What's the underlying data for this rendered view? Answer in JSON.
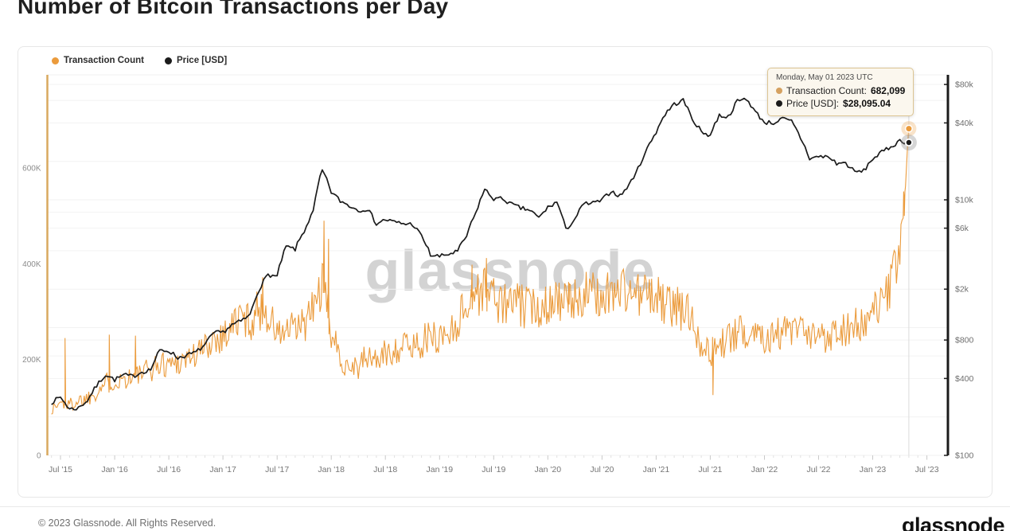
{
  "header": {
    "title": "Number of Bitcoin Transactions per Day"
  },
  "legend": {
    "items": [
      {
        "label": "Transaction Count",
        "color": "#EB9B3C"
      },
      {
        "label": "Price [USD]",
        "color": "#1b1b1b"
      }
    ]
  },
  "tooltip": {
    "date": "Monday, May 01 2023 UTC",
    "rows": [
      {
        "label": "Transaction Count:",
        "value": "682,099",
        "color": "#D5A160"
      },
      {
        "label": "Price [USD]:",
        "value": "$28,095.04",
        "color": "#1b1b1b"
      }
    ]
  },
  "footer": {
    "copyright": "© 2023 Glassnode. All Rights Reserved.",
    "logo": "glassnode"
  },
  "chart_data": {
    "type": "line",
    "title": "Number of Bitcoin Transactions per Day",
    "watermark": "glassnode",
    "x_start_month": "2015-06",
    "x_tick_labels": [
      "Jul '15",
      "Jan '16",
      "Jul '16",
      "Jan '17",
      "Jul '17",
      "Jan '18",
      "Jul '18",
      "Jan '19",
      "Jul '19",
      "Jan '20",
      "Jul '20",
      "Jan '21",
      "Jul '21",
      "Jan '22",
      "Jul '22",
      "Jan '23",
      "Jul '23"
    ],
    "left_axis": {
      "type": "linear",
      "color": "#D9A95F",
      "label_color": "#8c8c8c",
      "min": 0,
      "max": 795000,
      "ticks": [
        {
          "v": 0,
          "label": "0"
        },
        {
          "v": 200000,
          "label": "200K"
        },
        {
          "v": 400000,
          "label": "400K"
        },
        {
          "v": 600000,
          "label": "600K"
        }
      ]
    },
    "right_axis": {
      "type": "log",
      "color": "#1b1b1b",
      "label_color": "#6e6e6e",
      "min": 100,
      "max": 95000,
      "ticks": [
        {
          "v": 80000,
          "label": "$80k"
        },
        {
          "v": 40000,
          "label": "$40k"
        },
        {
          "v": 10000,
          "label": "$10k"
        },
        {
          "v": 6000,
          "label": "$6k"
        },
        {
          "v": 2000,
          "label": "$2k"
        },
        {
          "v": 800,
          "label": "$800"
        },
        {
          "v": 400,
          "label": "$400"
        },
        {
          "v": 100,
          "label": "$100"
        }
      ],
      "gridline_values": [
        100,
        200,
        400,
        600,
        800,
        1000,
        2000,
        4000,
        6000,
        8000,
        10000,
        20000,
        40000,
        60000,
        80000
      ]
    },
    "series": [
      {
        "name": "Transaction Count",
        "axis": "left",
        "color": "#EB9B3C",
        "noise_ratio": 0.15,
        "noise_cap": 52000,
        "monthly_values": [
          95000,
          110000,
          105000,
          115000,
          120000,
          135000,
          150000,
          155000,
          160000,
          165000,
          170000,
          180000,
          190000,
          192000,
          195000,
          205000,
          210000,
          225000,
          245000,
          250000,
          270000,
          290000,
          278000,
          305000,
          295000,
          252000,
          258000,
          262000,
          272000,
          305000,
          360000,
          255000,
          200000,
          190000,
          185000,
          205000,
          200000,
          210000,
          222000,
          228000,
          228000,
          238000,
          245000,
          248000,
          255000,
          280000,
          315000,
          340000,
          345000,
          335000,
          312000,
          322000,
          312000,
          308000,
          312000,
          322000,
          332000,
          312000,
          322000,
          342000,
          332000,
          332000,
          342000,
          347000,
          342000,
          337000,
          332000,
          332000,
          312000,
          312000,
          302000,
          292000,
          235000,
          212000,
          232000,
          242000,
          252000,
          262000,
          262000,
          252000,
          252000,
          257000,
          257000,
          257000,
          242000,
          247000,
          252000,
          262000,
          267000,
          272000,
          267000,
          292000,
          315000,
          350000,
          420000,
          682099
        ],
        "spikes": [
          [
            1.5,
            245000
          ],
          [
            6.4,
            252000
          ],
          [
            9.3,
            250000
          ],
          [
            23.4,
            372000
          ],
          [
            30.2,
            490000
          ],
          [
            30.7,
            452000
          ],
          [
            46.6,
            398000
          ],
          [
            48.2,
            412000
          ],
          [
            57.3,
            362000
          ],
          [
            73.3,
            126000
          ],
          [
            94.5,
            500000
          ]
        ]
      },
      {
        "name": "Price [USD]",
        "axis": "right",
        "color": "#1b1b1b",
        "noise_ratio": 0.04,
        "monthly_values": [
          260,
          285,
          230,
          235,
          270,
          350,
          430,
          390,
          425,
          415,
          450,
          470,
          660,
          660,
          580,
          608,
          640,
          730,
          905,
          920,
          1050,
          1120,
          1250,
          2000,
          2600,
          2500,
          4300,
          4100,
          5700,
          8000,
          17000,
          11500,
          9800,
          9000,
          8300,
          8500,
          6500,
          7000,
          6700,
          6500,
          6450,
          5200,
          3700,
          3600,
          3750,
          3950,
          5200,
          7800,
          12000,
          10200,
          10200,
          9200,
          8600,
          8300,
          7200,
          8700,
          9600,
          5800,
          7100,
          9300,
          9400,
          9900,
          11700,
          10700,
          13000,
          17500,
          25000,
          34000,
          47000,
          56000,
          60000,
          43000,
          34000,
          32000,
          46000,
          44500,
          59000,
          62000,
          48500,
          40500,
          40000,
          43000,
          41000,
          30500,
          21000,
          21800,
          21800,
          19300,
          19400,
          16500,
          16800,
          21000,
          23500,
          26000,
          29000,
          28095.04
        ]
      }
    ],
    "highlight": {
      "date": "Monday, May 01 2023 UTC",
      "month_index": 95,
      "transaction_count": 682099,
      "price_usd": 28095.04
    }
  }
}
